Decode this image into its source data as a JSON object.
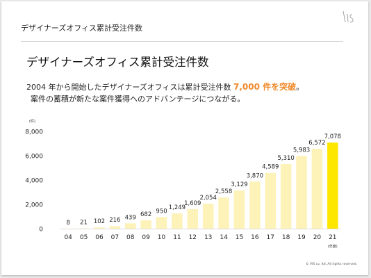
{
  "header": {
    "title": "デザイナーズオフィス累計受注件数"
  },
  "main": {
    "heading": "デザイナーズオフィス累計受注件数",
    "lead_prefix": "2004 年から開始したデザイナーズオフィスは累計受注件数 ",
    "lead_highlight": "7,000 件を突破",
    "lead_suffix": "。",
    "lead_line2": "案件の蓄積が新たな案件獲得へのアドバンテージにつながる。"
  },
  "footer": {
    "copyright": "© VIS co. ltd. All rights reserved."
  },
  "colors": {
    "bar": "#fdf2b8",
    "bar_highlight": "#fde600",
    "accent": "#f08a2b"
  },
  "chart_data": {
    "type": "bar",
    "y_unit": "(件)",
    "x_unit": "(年度)",
    "categories": [
      "04",
      "05",
      "06",
      "07",
      "08",
      "09",
      "10",
      "11",
      "12",
      "13",
      "14",
      "15",
      "16",
      "17",
      "18",
      "19",
      "20",
      "21"
    ],
    "values": [
      8,
      21,
      102,
      216,
      439,
      682,
      950,
      1249,
      1609,
      2054,
      2558,
      3129,
      3870,
      4589,
      5310,
      5983,
      6572,
      7078
    ],
    "value_labels": [
      "8",
      "21",
      "102",
      "216",
      "439",
      "682",
      "950",
      "1,249",
      "1,609",
      "2,054",
      "2,558",
      "3,129",
      "3,870",
      "4,589",
      "5,310",
      "5,983",
      "6,572",
      "7,078"
    ],
    "y_ticks": [
      0,
      2000,
      4000,
      6000,
      8000
    ],
    "y_tick_labels": [
      "0",
      "2,000",
      "4,000",
      "6,000",
      "8,000"
    ],
    "ylim": [
      0,
      8000
    ],
    "highlight_category": "21",
    "grid": false
  }
}
